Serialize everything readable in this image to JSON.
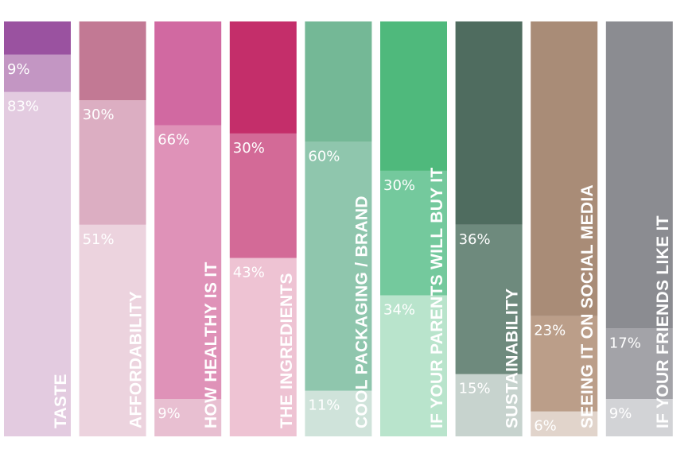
{
  "chart_data": {
    "type": "bar",
    "stacked": true,
    "categories": [
      {
        "label": "TASTE",
        "colors": [
          "#e3cbe0",
          "#c396c3",
          "#9a52a0"
        ]
      },
      {
        "label": "AFFORDABILITY",
        "colors": [
          "#ecd3de",
          "#dcaec2",
          "#c27994"
        ]
      },
      {
        "label": "HOW HEALTHY IS IT",
        "colors": [
          "#e8bfd1",
          "#df92b8",
          "#d169a1"
        ]
      },
      {
        "label": "THE INGREDIENTS",
        "colors": [
          "#eec3d3",
          "#d36a97",
          "#c42e6a"
        ]
      },
      {
        "label": "COOL PACKAGING / BRAND",
        "colors": [
          "#cfe3da",
          "#8fc6ad",
          "#74b896"
        ]
      },
      {
        "label": "IF YOUR PARENTS WILL BUY IT",
        "colors": [
          "#b9e4cc",
          "#74c99d",
          "#4fb97c"
        ]
      },
      {
        "label": "SUSTAINABILITY",
        "colors": [
          "#c7d3ce",
          "#6e8a7d",
          "#4f6c5f"
        ]
      },
      {
        "label": "SEEING IT ON SOCIAL MEDIA",
        "colors": [
          "#e1d4cb",
          "#bb9e89",
          "#a98c77"
        ]
      },
      {
        "label": "IF YOUR FRIENDS LIKE IT",
        "colors": [
          "#d2d3d6",
          "#a3a3a8",
          "#8b8c91"
        ]
      }
    ],
    "series": [
      {
        "values": [
          83,
          51,
          9,
          43,
          11,
          34,
          15,
          6,
          9
        ],
        "labels": [
          "83%",
          "51%",
          "9%",
          "43%",
          "11%",
          "34%",
          "15%",
          "6%",
          "9%"
        ]
      },
      {
        "values": [
          9,
          30,
          66,
          30,
          60,
          30,
          36,
          23,
          17
        ],
        "labels": [
          "9%",
          "30%",
          "66%",
          "30%",
          "60%",
          "30%",
          "36%",
          "23%",
          "17%"
        ]
      },
      {
        "values": [
          8,
          19,
          25,
          27,
          29,
          36,
          49,
          71,
          74
        ],
        "labels": [
          "",
          "",
          "",
          "",
          "",
          "",
          "",
          "",
          ""
        ]
      }
    ],
    "ylim": [
      0,
      100
    ],
    "title": "",
    "xlabel": "",
    "ylabel": "",
    "legend": "none",
    "grid": false
  }
}
